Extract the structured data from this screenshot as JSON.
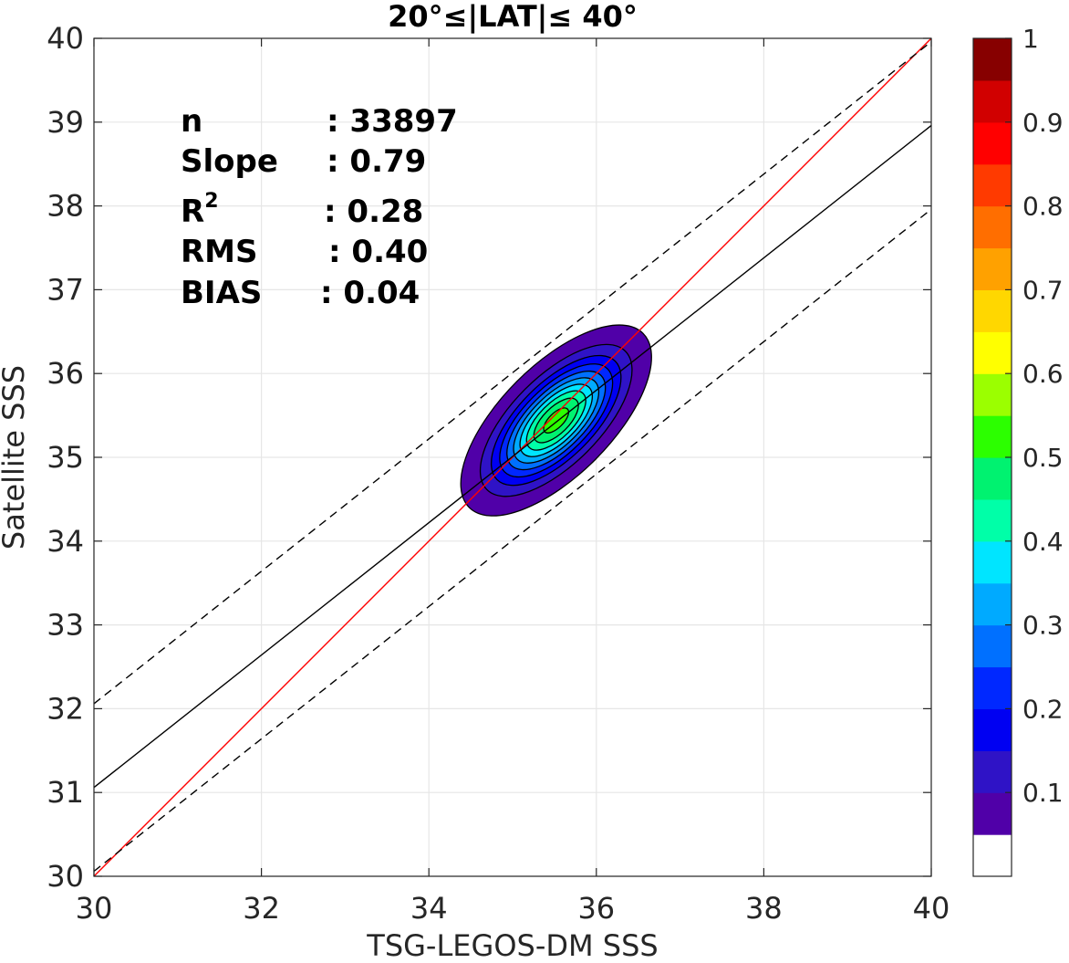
{
  "chart_data": {
    "type": "heatmap",
    "title": "20°≤|LAT|≤ 40°",
    "xlabel": "TSG-LEGOS-DM SSS",
    "ylabel": "Satellite SSS",
    "xlim": [
      30,
      40
    ],
    "ylim": [
      30,
      40
    ],
    "xticks": [
      "30",
      "32",
      "34",
      "36",
      "38",
      "40"
    ],
    "yticks": [
      "30",
      "31",
      "32",
      "33",
      "34",
      "35",
      "36",
      "37",
      "38",
      "39",
      "40"
    ],
    "grid": true,
    "stats": {
      "n_label": "n",
      "n_value": ": 33897",
      "slope_label": "Slope",
      "slope_value": ": 0.79",
      "r2_label": "R",
      "r2_sup": "2",
      "r2_value": ": 0.28",
      "rms_label": "RMS",
      "rms_value": ": 0.40",
      "bias_label": "BIAS",
      "bias_value": ": 0.04"
    },
    "lines": [
      {
        "kind": "one-to-one",
        "color": "#ff0000",
        "style": "solid",
        "points": [
          [
            30,
            30
          ],
          [
            40,
            40
          ]
        ]
      },
      {
        "kind": "regression",
        "color": "#000000",
        "style": "solid",
        "points": [
          [
            30,
            31.06
          ],
          [
            40,
            38.96
          ]
        ]
      },
      {
        "kind": "regression-plus",
        "color": "#000000",
        "style": "dashed",
        "points": [
          [
            30,
            32.06
          ],
          [
            40,
            39.96
          ]
        ]
      },
      {
        "kind": "regression-minus",
        "color": "#000000",
        "style": "dashed",
        "points": [
          [
            30,
            30.06
          ],
          [
            40,
            37.96
          ]
        ]
      }
    ],
    "density": {
      "center": [
        35.52,
        35.44
      ],
      "sigma_u": 0.6,
      "sigma_v": 0.27,
      "rotation_deg": 45,
      "max_level": 1.0
    },
    "contour_levels": [
      0.05,
      0.15,
      0.25,
      0.35,
      0.45,
      0.55,
      0.65,
      0.75,
      0.85,
      0.95
    ],
    "colorbar": {
      "range": [
        0,
        1
      ],
      "ticks": [
        "0.1",
        "0.2",
        "0.3",
        "0.4",
        "0.5",
        "0.6",
        "0.7",
        "0.8",
        "0.9",
        "1"
      ],
      "tick_values": [
        0.1,
        0.2,
        0.3,
        0.4,
        0.5,
        0.6,
        0.7,
        0.8,
        0.9,
        1.0
      ],
      "colors": [
        "#ffffff",
        "#5000a8",
        "#2f13c6",
        "#0000f2",
        "#0028ff",
        "#0070ff",
        "#00aaff",
        "#00e5ff",
        "#00ffa8",
        "#00f270",
        "#2cff00",
        "#9bff00",
        "#ffff00",
        "#ffd700",
        "#ffa100",
        "#ff6e00",
        "#ff3a00",
        "#ff0000",
        "#d10000",
        "#870000"
      ]
    }
  }
}
